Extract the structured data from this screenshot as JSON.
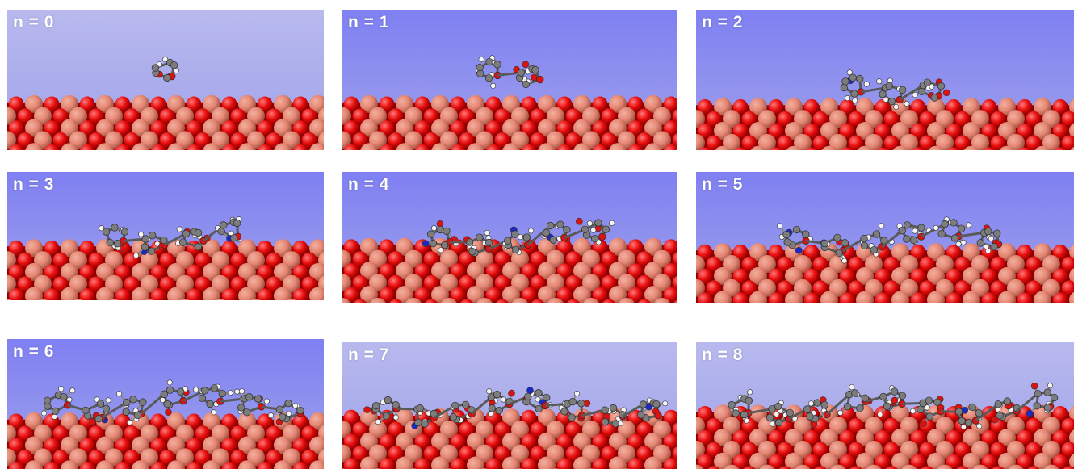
{
  "colors": {
    "background_top": "#7f80f2",
    "background_bottom": "#9fa2ea",
    "background_top_alt": "#b8b9ee",
    "surface_red": "#e80c0c",
    "surface_dark_red": "#8c0000",
    "surface_copper": "#e48573",
    "surface_copper_light": "#f3b09f",
    "carbon": "#7c7c7c",
    "oxygen": "#d91212",
    "nitrogen": "#1b29c7",
    "hydrogen": "#f4f4f4",
    "label_text": "#ffffff"
  },
  "panels": [
    {
      "label": "n = 0",
      "molecule_units": 1,
      "molecule_shape": "cluster"
    },
    {
      "label": "n = 1",
      "molecule_units": 2,
      "molecule_shape": "cluster"
    },
    {
      "label": "n = 2",
      "molecule_units": 3,
      "molecule_shape": "chain"
    },
    {
      "label": "n = 3",
      "molecule_units": 4,
      "molecule_shape": "chain"
    },
    {
      "label": "n = 4",
      "molecule_units": 5,
      "molecule_shape": "chain"
    },
    {
      "label": "n = 5",
      "molecule_units": 6,
      "molecule_shape": "chain"
    },
    {
      "label": "n = 6",
      "molecule_units": 7,
      "molecule_shape": "chain"
    },
    {
      "label": "n = 7",
      "molecule_units": 8,
      "molecule_shape": "chain"
    },
    {
      "label": "n = 8",
      "molecule_units": 9,
      "molecule_shape": "chain"
    }
  ]
}
